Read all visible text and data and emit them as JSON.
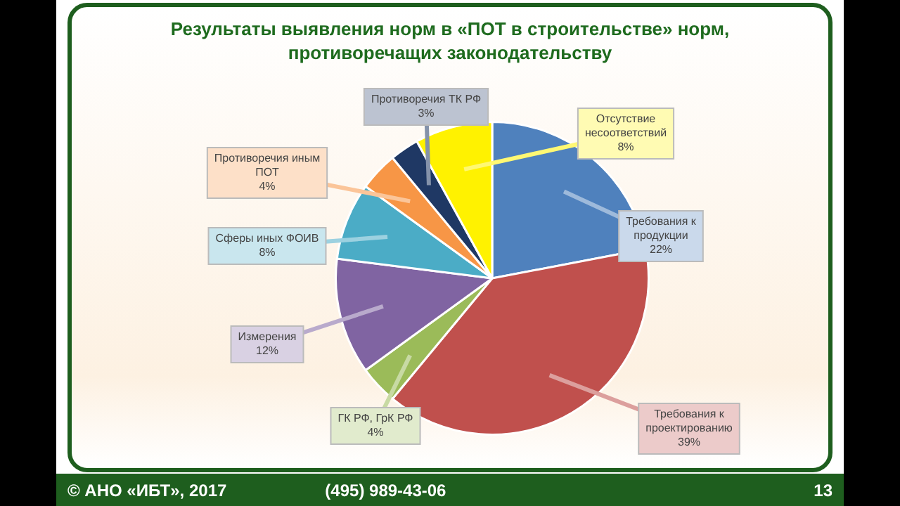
{
  "chart_data": {
    "type": "pie",
    "title": "Результаты выявления норм в «ПОТ в строительстве» норм, противоречащих законодательству",
    "categories": [
      "Требования к продукции",
      "Требования к проектированию",
      "ГК РФ, ГрК РФ",
      "Измерения",
      "Сферы иных ФОИВ",
      "Противоречия иным ПОТ",
      "Противоречия ТК РФ",
      "Отсутствие несоответствий"
    ],
    "values": [
      22,
      39,
      4,
      12,
      8,
      4,
      3,
      8
    ],
    "value_labels": [
      "22%",
      "39%",
      "4%",
      "12%",
      "8%",
      "4%",
      "3%",
      "8%"
    ],
    "colors": [
      "#4f81bd",
      "#c0504d",
      "#9bbb59",
      "#8064a2",
      "#4bacc6",
      "#f79646",
      "#1f3864",
      "#fff200"
    ],
    "legend": false,
    "annotations": [
      "© АНО «ИБТ», 2017",
      "(495) 989-43-06",
      "13"
    ]
  }
}
